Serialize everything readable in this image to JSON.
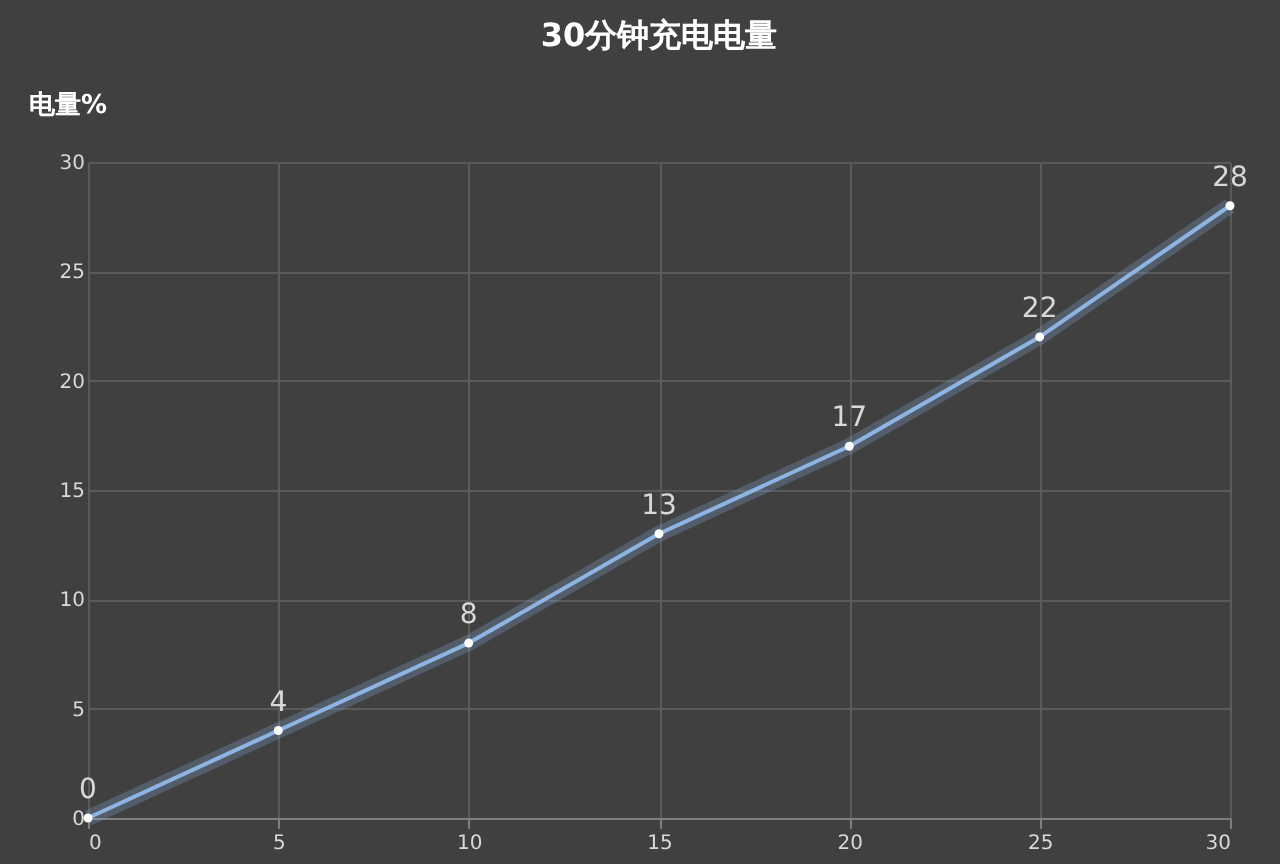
{
  "chart_data": {
    "type": "line",
    "title": "30分钟充电电量",
    "ylabel": "电量%",
    "x": [
      0,
      5,
      10,
      15,
      20,
      25,
      30
    ],
    "series": [
      {
        "color": "#8db4e2",
        "values": [
          0,
          4,
          8,
          13,
          17,
          22,
          28
        ]
      }
    ],
    "xlim": [
      0,
      30
    ],
    "xticks": [
      0,
      5,
      10,
      15,
      20,
      25,
      30
    ],
    "ylim": [
      0,
      30
    ],
    "yticks": [
      0,
      5,
      10,
      15,
      20,
      25,
      30
    ],
    "grid": true,
    "marker": "circle",
    "line_style": "solid",
    "data_labels": true
  }
}
